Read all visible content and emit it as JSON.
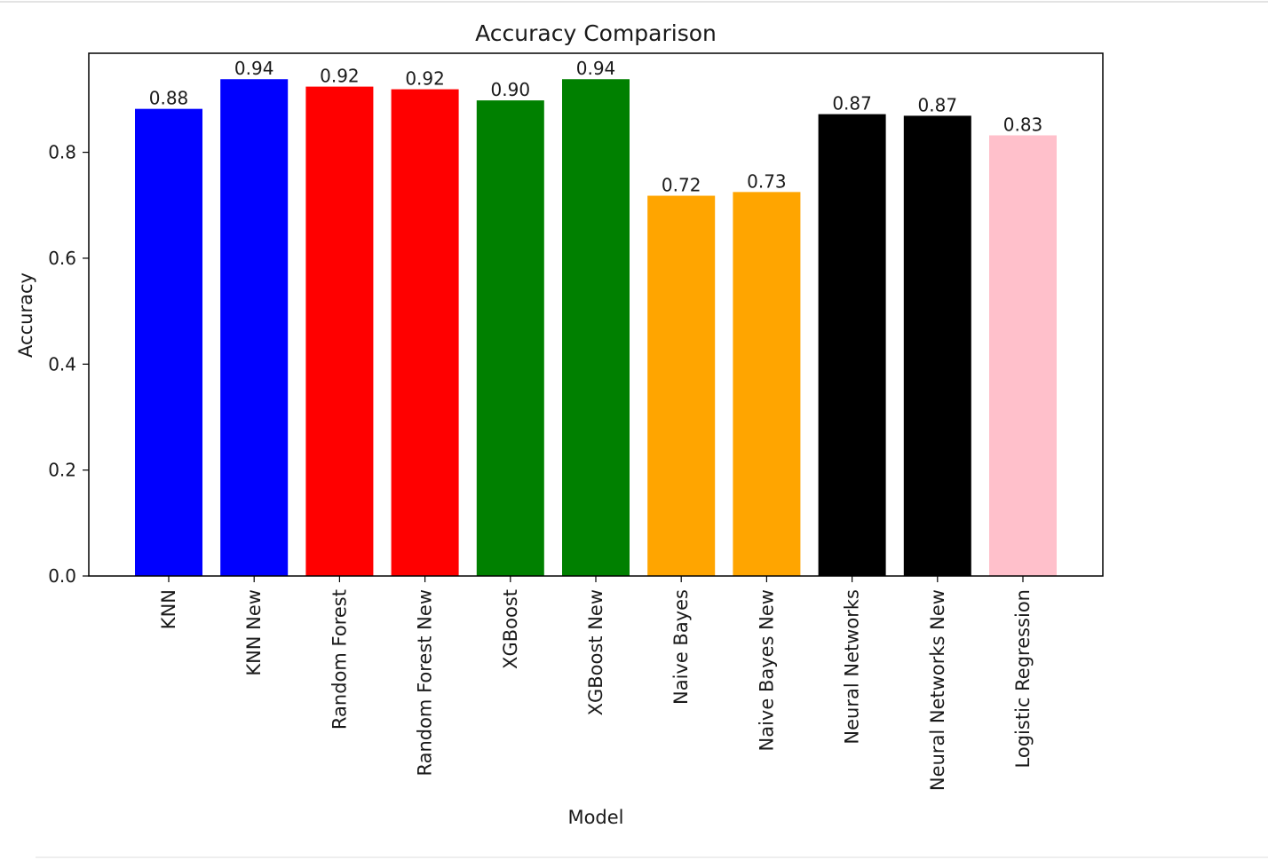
{
  "chart_data": {
    "type": "bar",
    "title": "Accuracy Comparison",
    "xlabel": "Model",
    "ylabel": "Accuracy",
    "categories": [
      "KNN",
      "KNN New",
      "Random Forest",
      "Random Forest New",
      "XGBoost",
      "XGBoost New",
      "Naive Bayes",
      "Naive Bayes New",
      "Neural Networks",
      "Neural Networks New",
      "Logistic Regression"
    ],
    "values": [
      0.882,
      0.938,
      0.924,
      0.919,
      0.898,
      0.938,
      0.718,
      0.725,
      0.872,
      0.869,
      0.832
    ],
    "data_labels": [
      "0.88",
      "0.94",
      "0.92",
      "0.92",
      "0.90",
      "0.94",
      "0.72",
      "0.73",
      "0.87",
      "0.87",
      "0.83"
    ],
    "colors": [
      "#0000ff",
      "#0000ff",
      "#ff0000",
      "#ff0000",
      "#008000",
      "#008000",
      "#ffa500",
      "#ffa500",
      "#000000",
      "#000000",
      "#ffc0cb"
    ],
    "ylim": [
      0,
      0.987
    ],
    "yticks": [
      0.0,
      0.2,
      0.4,
      0.6,
      0.8
    ],
    "ytick_labels": [
      "0.0",
      "0.2",
      "0.4",
      "0.6",
      "0.8"
    ],
    "grid": false,
    "legend": "none"
  }
}
